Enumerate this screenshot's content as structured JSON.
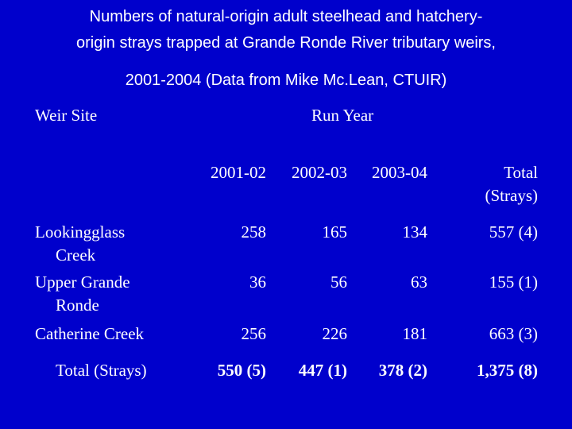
{
  "title": {
    "lines": [
      "Numbers of natural-origin adult steelhead and hatchery-",
      "origin strays trapped at Grande Ronde River tributary weirs,",
      "2001-2004 (Data from Mike Mc.Lean, CTUIR)"
    ]
  },
  "table": {
    "header": [
      "Weir Site",
      "Run Year"
    ],
    "columns": [
      "2001-02",
      "2002-03",
      "2003-04",
      "Total (Strays)"
    ],
    "rows": [
      [
        "Lookingglass Creek",
        258,
        165,
        134,
        "557 (4)"
      ],
      [
        "Upper Grande Ronde",
        36,
        56,
        63,
        "155 (1)"
      ],
      [
        "Catherine Creek",
        256,
        226,
        181,
        "663 (3)"
      ],
      [
        "Total (Strays)",
        "550 (5)",
        "447 (1)",
        "378 (2)",
        "1,375 (8)"
      ]
    ]
  }
}
